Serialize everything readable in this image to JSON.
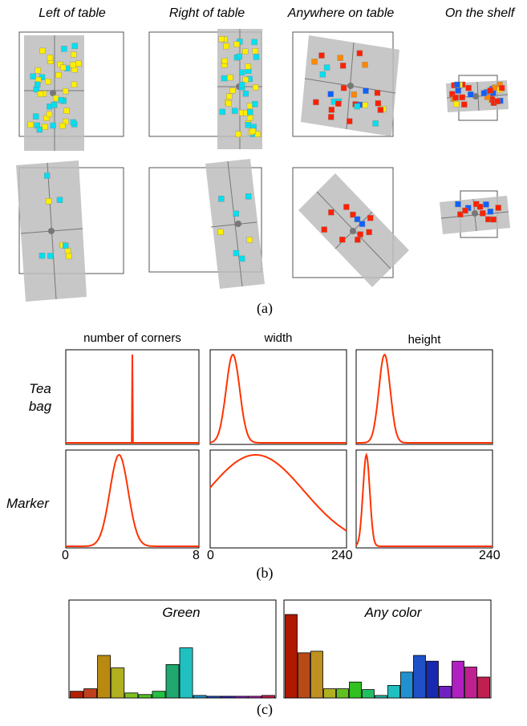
{
  "figure_a": {
    "column_titles": [
      "Left of table",
      "Right of table",
      "Anywhere on table",
      "On the shelf"
    ],
    "panel_label": "(a)"
  },
  "figure_b": {
    "column_titles": [
      "number of corners",
      "width",
      "height"
    ],
    "row_labels": [
      [
        "Tea",
        "bag"
      ],
      [
        "Marker"
      ]
    ],
    "ticks": {
      "corners_min": "0",
      "corners_max": "8",
      "width_min": "0",
      "width_max": "240",
      "height_max": "240"
    },
    "panel_label": "(b)",
    "curve_color": "#ff3300"
  },
  "figure_c": {
    "titles": [
      "Green",
      "Any color"
    ],
    "panel_label": "(c)"
  },
  "chart_data": [
    {
      "type": "line",
      "row": "Tea bag",
      "column": "number of corners",
      "x_range": [
        0,
        8
      ],
      "peak_x": 4.0,
      "shape": "spike"
    },
    {
      "type": "line",
      "row": "Tea bag",
      "column": "width",
      "x_range": [
        0,
        240
      ],
      "peak_x": 40,
      "spread": 12
    },
    {
      "type": "line",
      "row": "Tea bag",
      "column": "height",
      "x_range": [
        0,
        240
      ],
      "peak_x": 50,
      "spread": 10
    },
    {
      "type": "line",
      "row": "Marker",
      "column": "number of corners",
      "x_range": [
        0,
        8
      ],
      "peak_x": 3.2,
      "spread": 0.55
    },
    {
      "type": "line",
      "row": "Marker",
      "column": "width",
      "x_range": [
        0,
        240
      ],
      "peak_x": 80,
      "spread": 85
    },
    {
      "type": "line",
      "row": "Marker",
      "column": "height",
      "x_range": [
        0,
        240
      ],
      "peak_x": 18,
      "spread": 6
    },
    {
      "type": "bar",
      "title": "Green",
      "values": [
        8,
        11,
        51,
        36,
        6,
        4,
        8,
        40,
        60,
        3,
        2,
        2,
        2,
        2,
        3
      ],
      "colors": [
        "#b22000",
        "#c0401e",
        "#b88a10",
        "#b0b020",
        "#80c020",
        "#50c020",
        "#20c040",
        "#20a870",
        "#20c0c0",
        "#2090c8",
        "#2050c8",
        "#3020c0",
        "#8020c0",
        "#b020b0",
        "#c02050"
      ]
    },
    {
      "type": "bar",
      "title": "Any color",
      "values": [
        100,
        54,
        56,
        11,
        11,
        19,
        10,
        3,
        15,
        31,
        51,
        44,
        14,
        44,
        37,
        25
      ],
      "colors": [
        "#b01800",
        "#b84a18",
        "#c09020",
        "#b0b020",
        "#60c020",
        "#30c020",
        "#20c060",
        "#20b0a0",
        "#20c0c0",
        "#2090d0",
        "#2050c8",
        "#1828b0",
        "#7020c0",
        "#b020c0",
        "#c02090",
        "#c02050"
      ]
    }
  ]
}
